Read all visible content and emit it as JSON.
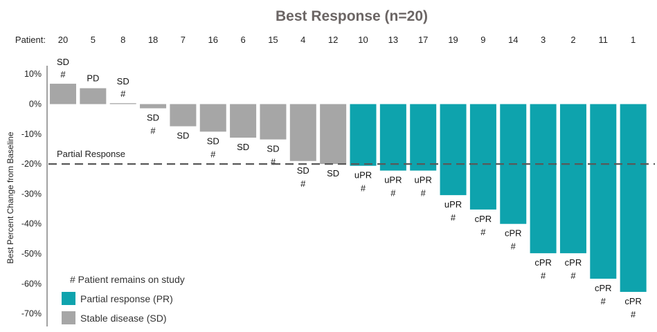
{
  "chart_data": {
    "type": "bar",
    "title": "Best Response (n=20)",
    "ylabel": "Best Percent Change from Baseline",
    "x_prefix_label": "Patient:",
    "ylim": [
      -72,
      12
    ],
    "yticks": [
      10,
      0,
      -10,
      -20,
      -30,
      -40,
      -50,
      -60,
      -70
    ],
    "ytick_labels": [
      "10%",
      "0%",
      "-10%",
      "-20%",
      "-30%",
      "-40%",
      "-50%",
      "-60%",
      "-70%"
    ],
    "threshold": {
      "value": -20,
      "label": "Partial Response"
    },
    "colors": {
      "PR": "#0ea3ad",
      "SD": "#a6a6a6",
      "threshold": "#595959",
      "axis": "#444444"
    },
    "series": [
      {
        "name": "Partial response (PR)",
        "key": "PR"
      },
      {
        "name": "Stable disease (SD)",
        "key": "SD"
      }
    ],
    "legend_note": "# Patient remains on study",
    "bars": [
      {
        "patient": "20",
        "value": 6.8,
        "group": "SD",
        "label": "SD",
        "hash": true
      },
      {
        "patient": "5",
        "value": 5.3,
        "group": "SD",
        "label": "PD",
        "hash": false
      },
      {
        "patient": "8",
        "value": 0.3,
        "group": "SD",
        "label": "SD",
        "hash": true
      },
      {
        "patient": "18",
        "value": -1.4,
        "group": "SD",
        "label": "SD",
        "hash": true
      },
      {
        "patient": "7",
        "value": -7.4,
        "group": "SD",
        "label": "SD",
        "hash": false
      },
      {
        "patient": "16",
        "value": -9.2,
        "group": "SD",
        "label": "SD",
        "hash": true
      },
      {
        "patient": "6",
        "value": -11.2,
        "group": "SD",
        "label": "SD",
        "hash": false
      },
      {
        "patient": "15",
        "value": -11.8,
        "group": "SD",
        "label": "SD",
        "hash": true
      },
      {
        "patient": "4",
        "value": -19.0,
        "group": "SD",
        "label": "SD",
        "hash": true
      },
      {
        "patient": "12",
        "value": -20.0,
        "group": "SD",
        "label": "SD",
        "hash": false
      },
      {
        "patient": "10",
        "value": -20.6,
        "group": "PR",
        "label": "uPR",
        "hash": true
      },
      {
        "patient": "13",
        "value": -22.2,
        "group": "PR",
        "label": "uPR",
        "hash": true
      },
      {
        "patient": "17",
        "value": -22.2,
        "group": "PR",
        "label": "uPR",
        "hash": true
      },
      {
        "patient": "19",
        "value": -30.4,
        "group": "PR",
        "label": "uPR",
        "hash": true
      },
      {
        "patient": "9",
        "value": -35.2,
        "group": "PR",
        "label": "cPR",
        "hash": true
      },
      {
        "patient": "14",
        "value": -40.0,
        "group": "PR",
        "label": "cPR",
        "hash": true
      },
      {
        "patient": "3",
        "value": -49.8,
        "group": "PR",
        "label": "cPR",
        "hash": true
      },
      {
        "patient": "2",
        "value": -49.8,
        "group": "PR",
        "label": "cPR",
        "hash": true
      },
      {
        "patient": "11",
        "value": -58.3,
        "group": "PR",
        "label": "cPR",
        "hash": true
      },
      {
        "patient": "1",
        "value": -62.7,
        "group": "PR",
        "label": "cPR",
        "hash": true
      }
    ],
    "hash_symbol": "#"
  }
}
